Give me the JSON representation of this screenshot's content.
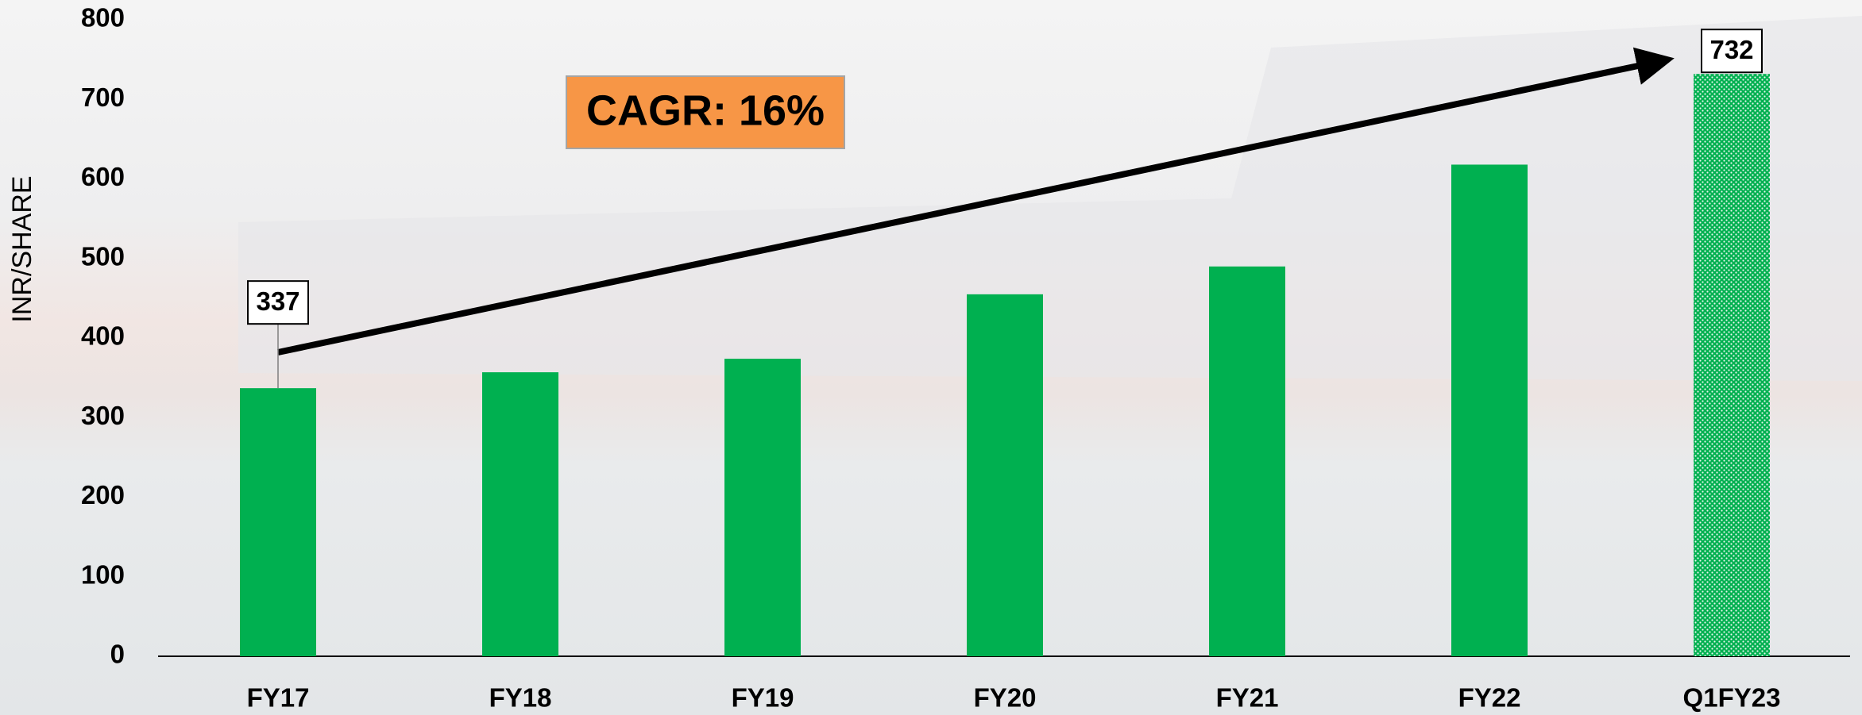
{
  "chart_data": {
    "type": "bar",
    "y_label": "INR/SHARE",
    "annotation": "CAGR: 16%",
    "categories": [
      "FY17",
      "FY18",
      "FY19",
      "FY20",
      "FY21",
      "FY22",
      "Q1FY23"
    ],
    "values": [
      337,
      357,
      374,
      455,
      490,
      618,
      732
    ],
    "labeled": [
      0,
      6
    ],
    "color": "#00b050",
    "ylim": [
      0,
      800
    ],
    "yticks": [
      0,
      100,
      200,
      300,
      400,
      500,
      600,
      700,
      800
    ],
    "grid": false
  }
}
